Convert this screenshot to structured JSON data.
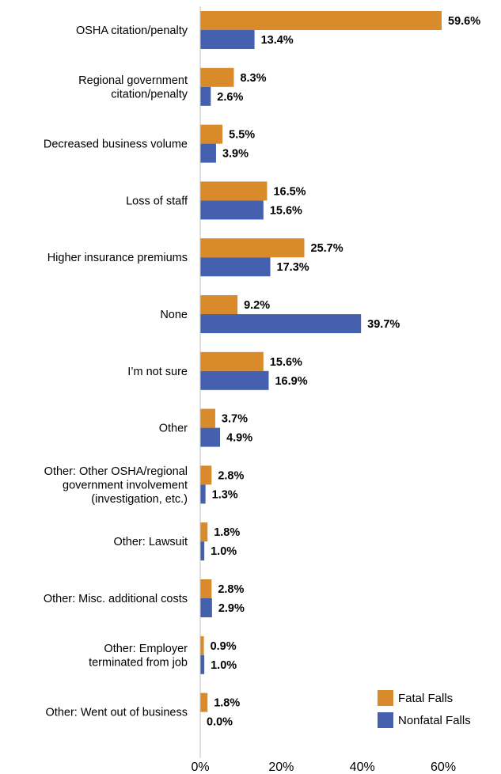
{
  "chart_data": {
    "type": "bar",
    "orientation": "horizontal",
    "categories": [
      [
        "OSHA citation/penalty"
      ],
      [
        "Regional government",
        "citation/penalty"
      ],
      [
        "Decreased business volume"
      ],
      [
        "Loss of staff"
      ],
      [
        "Higher insurance premiums"
      ],
      [
        "None"
      ],
      [
        "I’m not sure"
      ],
      [
        "Other"
      ],
      [
        "Other: Other OSHA/regional",
        "government involvement",
        "(investigation, etc.)"
      ],
      [
        "Other: Lawsuit"
      ],
      [
        "Other: Misc. additional costs"
      ],
      [
        "Other: Employer",
        "terminated from job"
      ],
      [
        "Other: Went out of business"
      ]
    ],
    "series": [
      {
        "name": "Fatal Falls",
        "color": "#D98A2A",
        "values": [
          59.6,
          8.3,
          5.5,
          16.5,
          25.7,
          9.2,
          15.6,
          3.7,
          2.8,
          1.8,
          2.8,
          0.9,
          1.8
        ],
        "labels": [
          "59.6%",
          "8.3%",
          "5.5%",
          "16.5%",
          "25.7%",
          "9.2%",
          "15.6%",
          "3.7%",
          "2.8%",
          "1.8%",
          "2.8%",
          "0.9%",
          "1.8%"
        ]
      },
      {
        "name": "Nonfatal Falls",
        "color": "#4660B0",
        "values": [
          13.4,
          2.6,
          3.9,
          15.6,
          17.3,
          39.7,
          16.9,
          4.9,
          1.3,
          1.0,
          2.9,
          1.0,
          0.0
        ],
        "labels": [
          "13.4%",
          "2.6%",
          "3.9%",
          "15.6%",
          "17.3%",
          "39.7%",
          "16.9%",
          "4.9%",
          "1.3%",
          "1.0%",
          "2.9%",
          "1.0%",
          "0.0%"
        ]
      }
    ],
    "xlim": [
      0,
      70
    ],
    "xticks": [
      0,
      20,
      40,
      60
    ],
    "xtick_labels": [
      "0%",
      "20%",
      "40%",
      "60%"
    ],
    "grid": false,
    "legend_position": "bottom-right"
  }
}
